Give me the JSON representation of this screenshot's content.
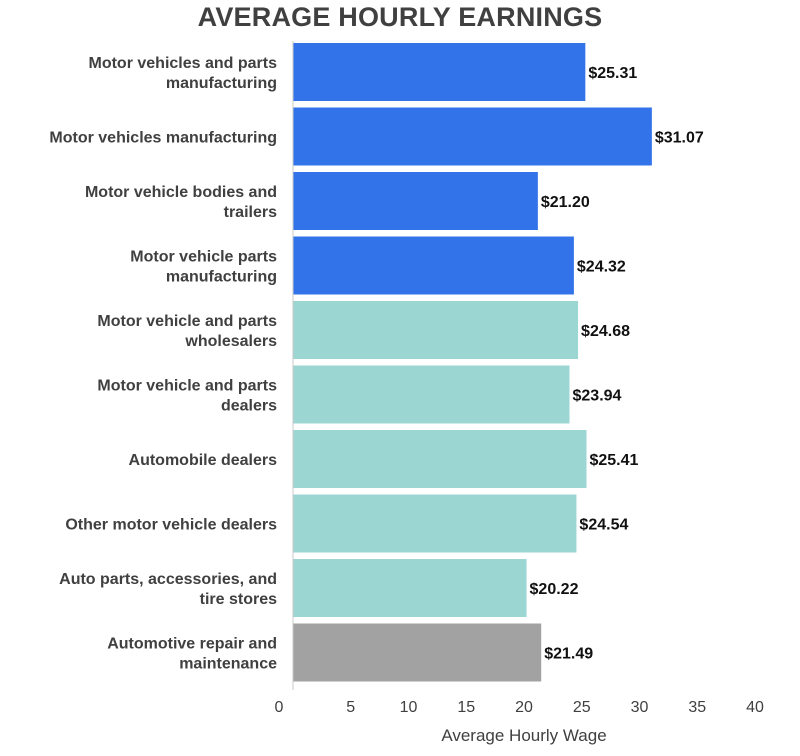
{
  "chart_data": {
    "type": "bar",
    "orientation": "horizontal",
    "title": "AVERAGE HOURLY EARNINGS",
    "xlabel": "Average Hourly Wage",
    "ylabel": "",
    "xlim": [
      0,
      40
    ],
    "xticks": [
      0,
      5,
      10,
      15,
      20,
      25,
      30,
      35,
      40
    ],
    "grid": false,
    "categories": [
      [
        "Motor vehicles and parts",
        "manufacturing"
      ],
      [
        "Motor vehicles manufacturing"
      ],
      [
        "Motor vehicle bodies and",
        "trailers"
      ],
      [
        "Motor vehicle parts",
        "manufacturing"
      ],
      [
        "Motor vehicle and parts",
        "wholesalers"
      ],
      [
        "Motor vehicle and parts",
        "dealers"
      ],
      [
        "Automobile dealers"
      ],
      [
        "Other motor vehicle dealers"
      ],
      [
        "Auto parts, accessories, and",
        "tire stores"
      ],
      [
        "Automotive repair and",
        "maintenance"
      ]
    ],
    "values": [
      25.31,
      31.07,
      21.2,
      24.32,
      24.68,
      23.94,
      25.41,
      24.54,
      20.22,
      21.49
    ],
    "value_labels": [
      "$25.31",
      "$31.07",
      "$21.20",
      "$24.32",
      "$24.68",
      "$23.94",
      "$25.41",
      "$24.54",
      "$20.22",
      "$21.49"
    ],
    "bar_colors": [
      "#3273ea",
      "#3273ea",
      "#3273ea",
      "#3273ea",
      "#9bd6d3",
      "#9bd6d3",
      "#9bd6d3",
      "#9bd6d3",
      "#9bd6d3",
      "#a2a2a2"
    ]
  }
}
